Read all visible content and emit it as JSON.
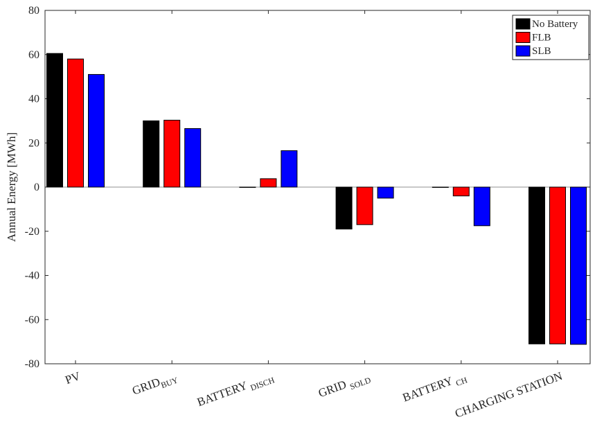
{
  "chart_data": {
    "type": "bar",
    "categories": [
      {
        "main": "PV",
        "sub": ""
      },
      {
        "main": "GRID",
        "sub": "BUY"
      },
      {
        "main": "BATTERY ",
        "sub": "DISCH"
      },
      {
        "main": "GRID ",
        "sub": "SOLD"
      },
      {
        "main": "BATTERY ",
        "sub": "CH"
      },
      {
        "main": "CHARGING STATION",
        "sub": ""
      }
    ],
    "series": [
      {
        "name": "No Battery",
        "color": "#000000",
        "values": [
          60.5,
          30.0,
          0,
          -19.0,
          0,
          -71.0
        ]
      },
      {
        "name": "FLB",
        "color": "#ff0000",
        "values": [
          58.0,
          30.3,
          3.8,
          -17.0,
          -4.0,
          -71.0
        ]
      },
      {
        "name": "SLB",
        "color": "#0000ff",
        "values": [
          51.0,
          26.5,
          16.5,
          -5.0,
          -17.5,
          -71.2
        ]
      }
    ],
    "ylabel": "Annual Energy [MWh]",
    "ylim": [
      -80,
      80
    ],
    "yticks": [
      "-80",
      "-60",
      "-40",
      "-20",
      "0",
      "20",
      "40",
      "60",
      "80"
    ],
    "legend_position": "top-right",
    "grid": false
  }
}
